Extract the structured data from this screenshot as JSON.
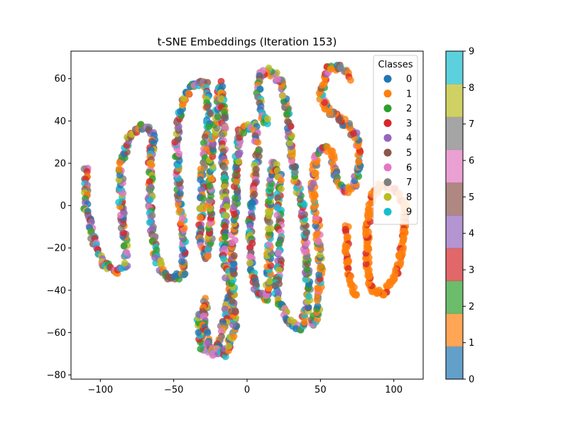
{
  "chart_data": {
    "type": "scatter",
    "title": "t-SNE Embeddings (Iteration 153)",
    "xlabel": "",
    "ylabel": "",
    "xlim": [
      -120,
      120
    ],
    "ylim": [
      -82,
      73
    ],
    "x_ticks": [
      -100,
      -50,
      0,
      50,
      100
    ],
    "y_ticks": [
      -80,
      -60,
      -40,
      -20,
      0,
      20,
      40,
      60
    ],
    "grid": false,
    "legend": {
      "title": "Classes",
      "placement": "top-right",
      "entries": [
        "0",
        "1",
        "2",
        "3",
        "4",
        "5",
        "6",
        "7",
        "8",
        "9"
      ]
    },
    "colorbar": {
      "ticks": [
        0,
        1,
        2,
        3,
        4,
        5,
        6,
        7,
        8,
        9
      ],
      "range": [
        0,
        9
      ]
    },
    "class_colors": [
      "#1f77b4",
      "#ff7f0e",
      "#2ca02c",
      "#d62728",
      "#9467bd",
      "#8c564b",
      "#e377c2",
      "#7f7f7f",
      "#bcbd22",
      "#17becf"
    ],
    "path_mixed": [
      [
        -110,
        18
      ],
      [
        -110,
        0
      ],
      [
        -105,
        -15
      ],
      [
        -98,
        -27
      ],
      [
        -90,
        -31
      ],
      [
        -83,
        -28
      ],
      [
        -83,
        -18
      ],
      [
        -86,
        0
      ],
      [
        -86,
        20
      ],
      [
        -80,
        33
      ],
      [
        -70,
        38
      ],
      [
        -64,
        33
      ],
      [
        -66,
        20
      ],
      [
        -66,
        -5
      ],
      [
        -62,
        -25
      ],
      [
        -54,
        -34
      ],
      [
        -43,
        -33
      ],
      [
        -43,
        -15
      ],
      [
        -47,
        10
      ],
      [
        -48,
        30
      ],
      [
        -45,
        48
      ],
      [
        -37,
        57
      ],
      [
        -28,
        58
      ],
      [
        -26,
        40
      ],
      [
        -30,
        20
      ],
      [
        -31,
        0
      ],
      [
        -32,
        -15
      ],
      [
        -28,
        -25
      ],
      [
        -25,
        -15
      ],
      [
        -25,
        10
      ],
      [
        -24,
        28
      ],
      [
        -20,
        45
      ],
      [
        -18,
        58
      ],
      [
        -16,
        40
      ],
      [
        -16,
        20
      ],
      [
        -15,
        0
      ],
      [
        -16,
        -20
      ],
      [
        -12,
        -40
      ],
      [
        -15,
        -55
      ],
      [
        -22,
        -70
      ],
      [
        -30,
        -68
      ],
      [
        -33,
        -55
      ],
      [
        -28,
        -45
      ],
      [
        -30,
        -55
      ],
      [
        -25,
        -68
      ],
      [
        -15,
        -70
      ],
      [
        -8,
        -60
      ],
      [
        -10,
        -45
      ],
      [
        -10,
        -20
      ],
      [
        -8,
        0
      ],
      [
        -7,
        20
      ],
      [
        -5,
        35
      ],
      [
        5,
        38
      ],
      [
        7,
        25
      ],
      [
        5,
        10
      ],
      [
        2,
        -10
      ],
      [
        3,
        -30
      ],
      [
        7,
        -42
      ],
      [
        14,
        -44
      ],
      [
        15,
        -30
      ],
      [
        15,
        -10
      ],
      [
        16,
        10
      ],
      [
        18,
        20
      ],
      [
        22,
        15
      ],
      [
        22,
        -5
      ],
      [
        22,
        -25
      ],
      [
        20,
        -42
      ],
      [
        28,
        -55
      ],
      [
        37,
        -58
      ],
      [
        42,
        -45
      ],
      [
        40,
        -20
      ],
      [
        38,
        0
      ],
      [
        34,
        10
      ],
      [
        30,
        25
      ],
      [
        28,
        45
      ],
      [
        22,
        60
      ],
      [
        15,
        64
      ],
      [
        8,
        62
      ],
      [
        8,
        50
      ],
      [
        12,
        40
      ],
      [
        16,
        40
      ]
    ],
    "path_orange": [
      [
        100,
        8
      ],
      [
        108,
        0
      ],
      [
        107,
        -15
      ],
      [
        102,
        -32
      ],
      [
        93,
        -42
      ],
      [
        85,
        -40
      ],
      [
        82,
        -30
      ],
      [
        82,
        -10
      ],
      [
        85,
        5
      ],
      [
        92,
        10
      ],
      [
        100,
        8
      ]
    ],
    "path_orange_mixed": [
      [
        44,
        -57
      ],
      [
        48,
        -50
      ],
      [
        50,
        -30
      ],
      [
        48,
        -10
      ],
      [
        45,
        10
      ],
      [
        47,
        25
      ],
      [
        52,
        28
      ],
      [
        57,
        25
      ],
      [
        60,
        15
      ],
      [
        65,
        7
      ],
      [
        73,
        8
      ],
      [
        77,
        20
      ],
      [
        75,
        33
      ],
      [
        65,
        40
      ],
      [
        55,
        45
      ],
      [
        50,
        52
      ],
      [
        55,
        65
      ],
      [
        64,
        65
      ],
      [
        70,
        60
      ]
    ],
    "path_orange_tail": [
      [
        68,
        -10
      ],
      [
        68,
        -25
      ],
      [
        72,
        -40
      ],
      [
        76,
        -44
      ]
    ]
  }
}
